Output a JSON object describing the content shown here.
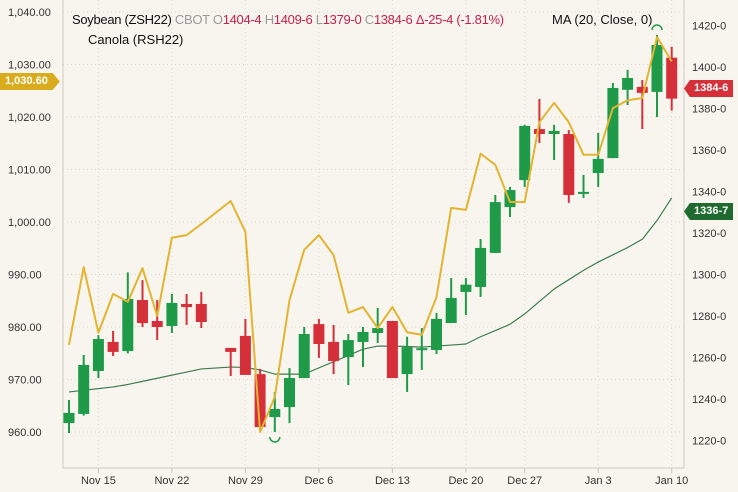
{
  "legend": {
    "symbol": "Soybean (ZSH22)",
    "exchange": "CBOT",
    "o_label": "O",
    "o_value": "1404-4",
    "h_label": "H",
    "h_value": "1409-6",
    "l_label": "L",
    "l_value": "1379-0",
    "c_label": "C",
    "c_value": "1384-6",
    "change": "Δ-25-4 (-1.81%)",
    "compare": "Canola (RSH22)",
    "indicator": "MA (20, Close, 0)"
  },
  "badges": {
    "canola_last": "1,030.60",
    "soy_last": "1384-6",
    "ma_last": "1336-7"
  },
  "colors": {
    "up": "#1f9a48",
    "down": "#d5303a",
    "canola": "#e2b431",
    "ma": "#3f7d4e",
    "background": "#f8f5ef",
    "canola_badge": "#d8ac1c",
    "ma_badge": "#1f6b2f"
  },
  "chart_data": {
    "type": "candlestick",
    "left_axis": {
      "series": "Canola (RSH22)",
      "ylim": [
        960,
        1040
      ],
      "ticks": [
        "960.00",
        "970.00",
        "980.00",
        "990.00",
        "1,000.00",
        "1,010.00",
        "1,020.00",
        "1,030.00",
        "1,040.00"
      ]
    },
    "right_axis": {
      "series": "Soybean (ZSH22)",
      "ylim": [
        1220,
        1420
      ],
      "ticks": [
        "1220-0",
        "1240-0",
        "1260-0",
        "1280-0",
        "1300-0",
        "1320-0",
        "1340-0",
        "1360-0",
        "1380-0",
        "1400-0",
        "1420-0"
      ]
    },
    "x_ticks": [
      "Nov 15",
      "Nov 22",
      "Nov 29",
      "Dec 6",
      "Dec 13",
      "Dec 20",
      "Dec 27",
      "Jan 3",
      "Jan 10"
    ],
    "grid": true,
    "markers": [
      {
        "date": "Dec 1",
        "type": "low",
        "position": "below"
      },
      {
        "date": "Jan 7",
        "type": "high",
        "position": "above"
      }
    ],
    "bars": [
      {
        "date": "Nov 11",
        "o": 1228.4,
        "h": 1239.5,
        "l": 1223.6,
        "c": 1233.3,
        "canola": 976.6,
        "ma": 1243.4
      },
      {
        "date": "Nov 12",
        "o": 1232.8,
        "h": 1261.2,
        "l": 1232.0,
        "c": 1256.4,
        "canola": 991.4,
        "ma": 1244.2
      },
      {
        "date": "Nov 15",
        "o": 1253.5,
        "h": 1270.8,
        "l": 1250.1,
        "c": 1268.9,
        "canola": 978.9,
        "ma": 1245.0
      },
      {
        "date": "Nov 16",
        "o": 1267.5,
        "h": 1272.8,
        "l": 1260.7,
        "c": 1262.7,
        "canola": 986.3,
        "ma": 1245.8
      },
      {
        "date": "Nov 17",
        "o": 1263.1,
        "h": 1301.0,
        "l": 1262.0,
        "c": 1288.2,
        "canola": 984.8,
        "ma": 1247.0
      },
      {
        "date": "Nov 18",
        "o": 1287.7,
        "h": 1297.3,
        "l": 1274.7,
        "c": 1276.6,
        "canola": 991.2,
        "ma": 1248.5
      },
      {
        "date": "Nov 19",
        "o": 1277.6,
        "h": 1287.7,
        "l": 1268.4,
        "c": 1274.7,
        "canola": 982.1,
        "ma": 1250.0
      },
      {
        "date": "Nov 22",
        "o": 1275.2,
        "h": 1290.6,
        "l": 1271.8,
        "c": 1286.3,
        "canola": 997.0,
        "ma": 1251.5
      },
      {
        "date": "Nov 23",
        "o": 1285.8,
        "h": 1290.6,
        "l": 1275.7,
        "c": 1284.3,
        "canola": 997.5,
        "ma": 1253.0
      },
      {
        "date": "Nov 24",
        "o": 1285.8,
        "h": 1291.6,
        "l": 1274.2,
        "c": 1277.1,
        "canola": 999.6,
        "ma": 1254.5
      },
      {
        "date": "Nov 25",
        "o": null,
        "h": null,
        "l": null,
        "c": null,
        "canola": null,
        "ma": null
      },
      {
        "date": "Nov 26",
        "o": 1264.6,
        "h": 1264.6,
        "l": 1251.1,
        "c": 1262.7,
        "canola": 1004.0,
        "ma": 1255.4
      },
      {
        "date": "Nov 29",
        "o": 1270.4,
        "h": 1278.6,
        "l": 1251.6,
        "c": 1251.6,
        "canola": 998.1,
        "ma": 1255.2
      },
      {
        "date": "Nov 30",
        "o": 1252.0,
        "h": 1254.5,
        "l": 1226.5,
        "c": 1226.5,
        "canola": 960.0,
        "ma": 1254.0
      },
      {
        "date": "Dec 1",
        "o": 1231.3,
        "h": 1243.4,
        "l": 1224.1,
        "c": 1235.2,
        "canola": 966.7,
        "ma": 1252.0
      },
      {
        "date": "Dec 2",
        "o": 1236.1,
        "h": 1254.9,
        "l": 1228.4,
        "c": 1250.1,
        "canola": 985.1,
        "ma": 1252.0
      },
      {
        "date": "Dec 3",
        "o": 1250.1,
        "h": 1274.7,
        "l": 1250.1,
        "c": 1271.3,
        "canola": 994.7,
        "ma": 1252.0
      },
      {
        "date": "Dec 6",
        "o": 1276.1,
        "h": 1278.6,
        "l": 1259.8,
        "c": 1266.5,
        "canola": 997.5,
        "ma": 1255.0
      },
      {
        "date": "Dec 7",
        "o": 1267.5,
        "h": 1275.7,
        "l": 1252.0,
        "c": 1258.3,
        "canola": 993.7,
        "ma": 1258.0
      },
      {
        "date": "Dec 8",
        "o": 1260.2,
        "h": 1271.3,
        "l": 1246.7,
        "c": 1268.4,
        "canola": 982.7,
        "ma": 1261.0
      },
      {
        "date": "Dec 9",
        "o": 1267.5,
        "h": 1274.7,
        "l": 1255.4,
        "c": 1272.3,
        "canola": 983.8,
        "ma": 1264.0
      },
      {
        "date": "Dec 10",
        "o": 1271.8,
        "h": 1283.9,
        "l": 1267.0,
        "c": 1274.2,
        "canola": 979.8,
        "ma": 1265.5
      },
      {
        "date": "Dec 13",
        "o": 1277.6,
        "h": 1277.6,
        "l": 1250.1,
        "c": 1250.1,
        "canola": 983.8,
        "ma": 1265.5
      },
      {
        "date": "Dec 14",
        "o": 1252.0,
        "h": 1270.0,
        "l": 1243.4,
        "c": 1265.0,
        "canola": 979.0,
        "ma": 1265.3
      },
      {
        "date": "Dec 15",
        "o": 1264.0,
        "h": 1274.2,
        "l": 1254.0,
        "c": 1264.5,
        "canola": 978.5,
        "ma": 1265.0
      },
      {
        "date": "Dec 16",
        "o": 1263.6,
        "h": 1281.5,
        "l": 1261.7,
        "c": 1278.6,
        "canola": 985.7,
        "ma": 1265.5
      },
      {
        "date": "Dec 17",
        "o": 1276.6,
        "h": 1298.3,
        "l": 1276.6,
        "c": 1288.7,
        "canola": 1002.7,
        "ma": 1266.0
      },
      {
        "date": "Dec 20",
        "o": 1291.6,
        "h": 1298.3,
        "l": 1280.5,
        "c": 1295.1,
        "canola": 1002.3,
        "ma": 1266.5
      },
      {
        "date": "Dec 21",
        "o": 1294.0,
        "h": 1317.1,
        "l": 1289.2,
        "c": 1312.8,
        "canola": 1013.0,
        "ma": 1270.0
      },
      {
        "date": "Dec 22",
        "o": 1310.4,
        "h": 1338.3,
        "l": 1310.4,
        "c": 1334.9,
        "canola": 1010.9,
        "ma": 1273.0
      },
      {
        "date": "Dec 23",
        "o": 1332.5,
        "h": 1342.2,
        "l": 1327.7,
        "c": 1340.7,
        "canola": 1003.8,
        "ma": 1276.0
      },
      {
        "date": "Dec 27",
        "o": 1345.5,
        "h": 1372.1,
        "l": 1342.2,
        "c": 1371.6,
        "canola": 1003.8,
        "ma": 1281.0
      },
      {
        "date": "Dec 28",
        "o": 1370.1,
        "h": 1384.6,
        "l": 1363.4,
        "c": 1367.7,
        "canola": 1019.0,
        "ma": 1287.0
      },
      {
        "date": "Dec 29",
        "o": 1367.7,
        "h": 1372.1,
        "l": 1355.2,
        "c": 1369.2,
        "canola": 1022.7,
        "ma": 1293.0
      },
      {
        "date": "Dec 30",
        "o": 1367.7,
        "h": 1369.6,
        "l": 1334.5,
        "c": 1338.3,
        "canola": 1019.0,
        "ma": 1297.5
      },
      {
        "date": "Dec 31",
        "o": 1339.2,
        "h": 1348.0,
        "l": 1336.9,
        "c": 1339.8,
        "canola": 1012.8,
        "ma": 1302.0
      },
      {
        "date": "Jan 3",
        "o": 1348.9,
        "h": 1368.2,
        "l": 1342.2,
        "c": 1355.7,
        "canola": 1012.8,
        "ma": 1306.0
      },
      {
        "date": "Jan 4",
        "o": 1356.1,
        "h": 1392.3,
        "l": 1356.1,
        "c": 1389.9,
        "canola": 1021.7,
        "ma": 1309.5
      },
      {
        "date": "Jan 5",
        "o": 1389.0,
        "h": 1398.6,
        "l": 1381.7,
        "c": 1394.7,
        "canola": 1023.2,
        "ma": 1313.0
      },
      {
        "date": "Jan 6",
        "o": 1390.4,
        "h": 1393.7,
        "l": 1370.1,
        "c": 1387.5,
        "canola": 1023.6,
        "ma": 1317.0
      },
      {
        "date": "Jan 7",
        "o": 1388.0,
        "h": 1415.4,
        "l": 1375.9,
        "c": 1410.6,
        "canola": 1035.2,
        "ma": 1326.0
      },
      {
        "date": "Jan 10",
        "o": 1404.5,
        "h": 1409.75,
        "l": 1379.0,
        "c": 1384.75,
        "canola": 1030.6,
        "ma": 1336.9
      }
    ]
  }
}
